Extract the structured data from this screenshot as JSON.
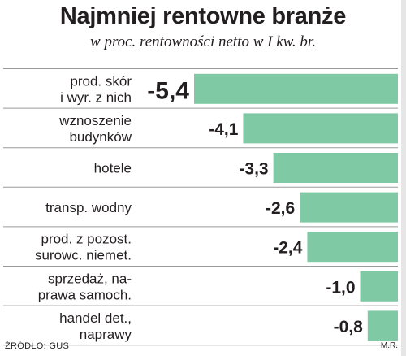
{
  "title": "Najmniej rentowne branże",
  "subtitle": "w proc. rentowności netto w I kw. br.",
  "source": "ŹRÓDŁO: GUS",
  "author": "M.R.",
  "colors": {
    "bar": "#7fc9a5",
    "highlight_value": "#d8264c",
    "separator": "#9a9a9a"
  },
  "chart_data": {
    "type": "bar",
    "orientation": "horizontal",
    "categories": [
      [
        "prod. skór",
        "i wyr. z nich"
      ],
      [
        "wznoszenie",
        "budynków"
      ],
      [
        "hotele"
      ],
      [
        "transp. wodny"
      ],
      [
        "prod. z pozost.",
        "surowc. niemet."
      ],
      [
        "sprzedaż, na-",
        "prawa samoch."
      ],
      [
        "handel det.,",
        "naprawy"
      ]
    ],
    "values": [
      -5.4,
      -4.1,
      -3.3,
      -2.6,
      -2.4,
      -1.0,
      -0.8
    ],
    "value_labels": [
      "-5,4",
      "-4,1",
      "-3,3",
      "-2,6",
      "-2,4",
      "-1,0",
      "-0,8"
    ],
    "highlighted_index": 0,
    "xlim": [
      -5.4,
      0
    ],
    "grid": false
  }
}
